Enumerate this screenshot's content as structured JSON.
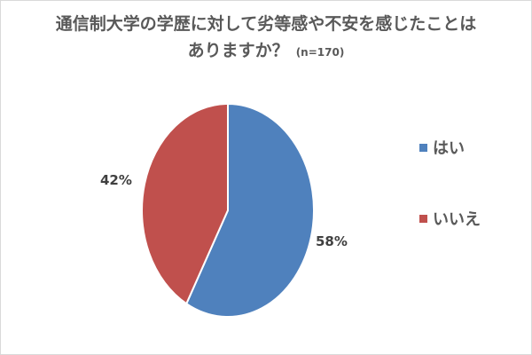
{
  "title": {
    "line1": "通信制大学の学歴に対して劣等感や不安を感じたことは",
    "line2": "ありますか？",
    "n_label": "(n=170)"
  },
  "chart_data": {
    "type": "pie",
    "title": "通信制大学の学歴に対して劣等感や不安を感じたことはありますか？",
    "subtitle": "(n=170)",
    "legend_position": "right",
    "slices": [
      {
        "label": "はい",
        "value": 58,
        "display": "58%",
        "color": "#4f81bd"
      },
      {
        "label": "いいえ",
        "value": 42,
        "display": "42%",
        "color": "#c0504d"
      }
    ]
  }
}
